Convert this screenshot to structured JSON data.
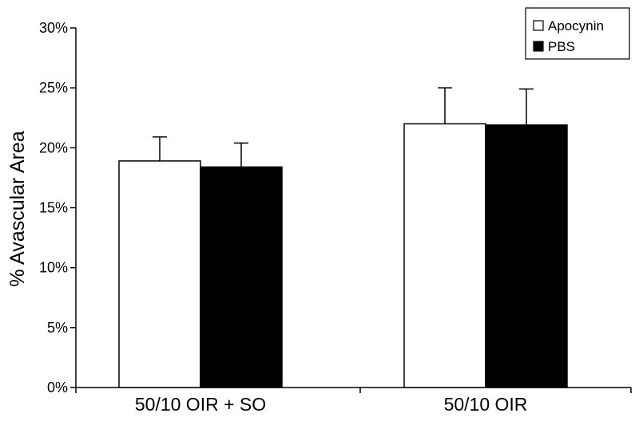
{
  "chart_data": {
    "type": "bar",
    "title": "",
    "xlabel": "",
    "ylabel": "% Avascular Area",
    "categories": [
      "50/10 OIR + SO",
      "50/10 OIR"
    ],
    "ylim": [
      0,
      30
    ],
    "yticks": [
      "0%",
      "5%",
      "10%",
      "15%",
      "20%",
      "25%",
      "30%"
    ],
    "grid": false,
    "legend": "top-right",
    "series": [
      {
        "name": "Apocynin",
        "color": "#ffffff",
        "values": [
          18.9,
          22.0
        ],
        "errors": [
          2.0,
          3.0
        ]
      },
      {
        "name": "PBS",
        "color": "#000000",
        "values": [
          18.4,
          21.9
        ],
        "errors": [
          2.0,
          3.0
        ]
      }
    ]
  }
}
